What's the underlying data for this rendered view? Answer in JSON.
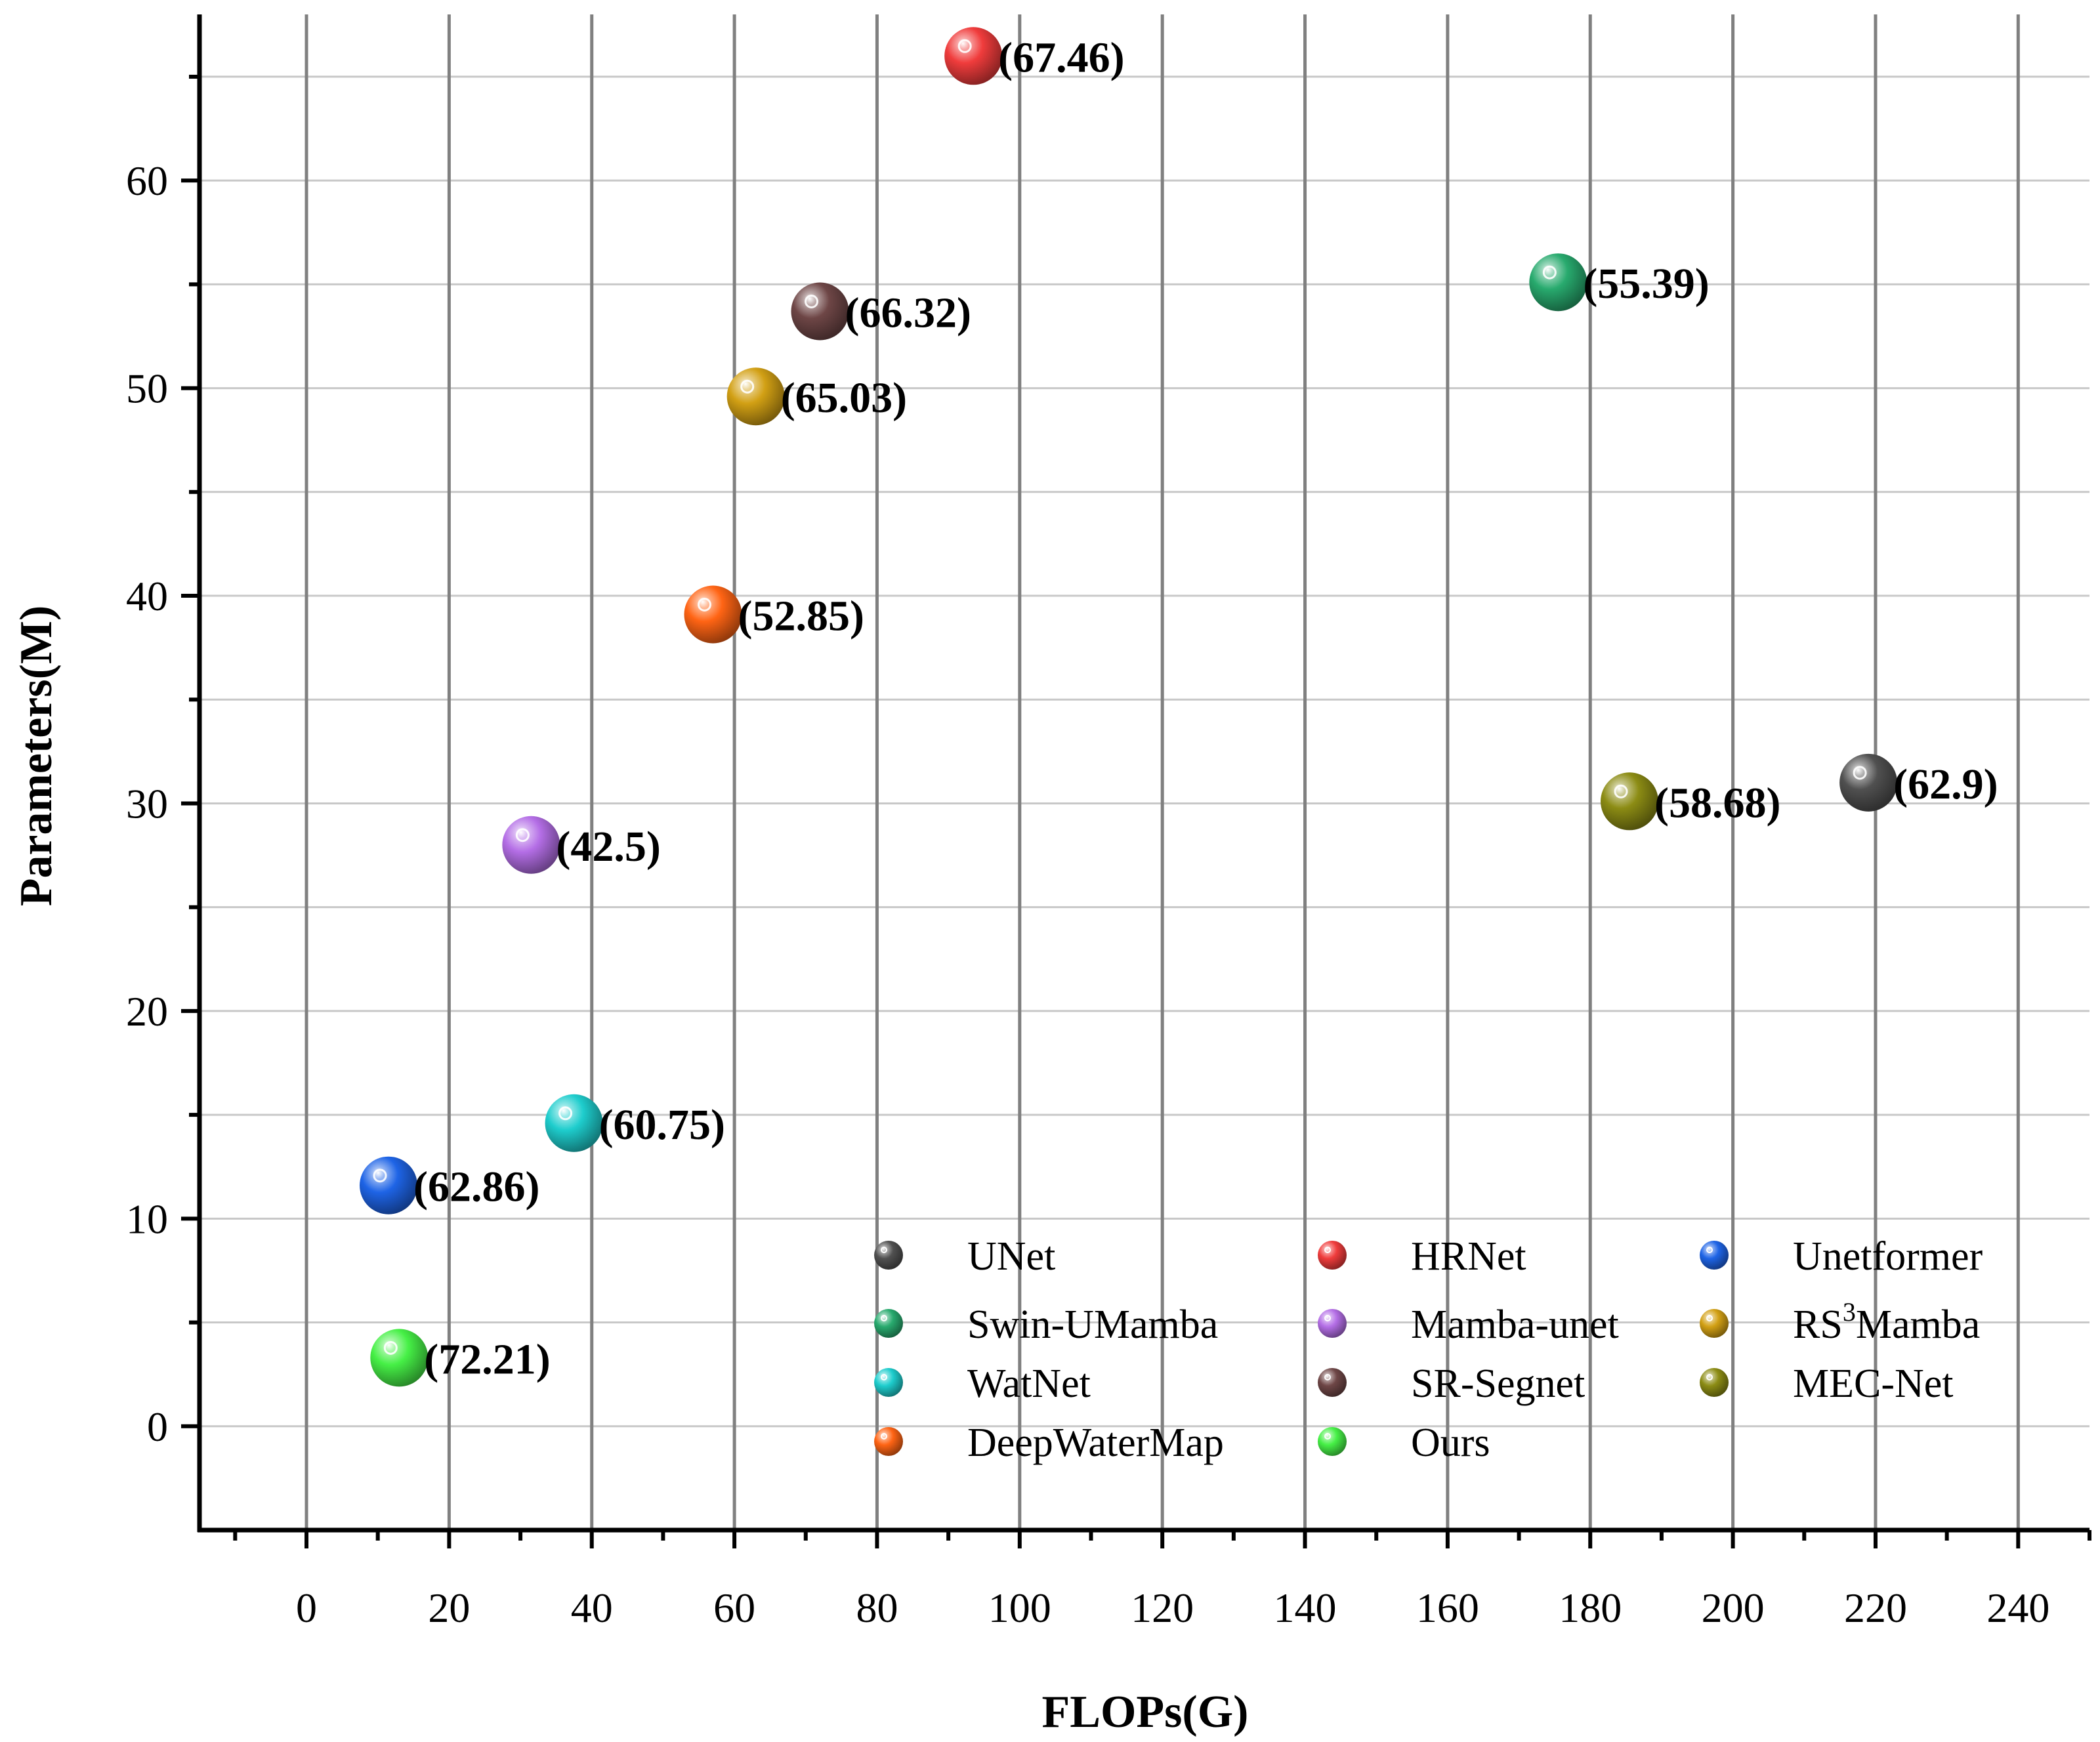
{
  "chart_data": {
    "type": "scatter",
    "title": "",
    "xlabel": "FLOPs(G)",
    "ylabel": "Parameters(M)",
    "xlim": [
      -15,
      250
    ],
    "ylim": [
      -5,
      68
    ],
    "x_ticks": [
      0,
      20,
      40,
      60,
      80,
      100,
      120,
      140,
      160,
      180,
      200,
      220,
      240
    ],
    "y_ticks": [
      0,
      10,
      20,
      30,
      40,
      50,
      60
    ],
    "grid": true,
    "legend_position": "bottom-right",
    "series": [
      {
        "name": "UNet",
        "x": 219,
        "y": 31,
        "label": "(62.9)",
        "color": "#505050"
      },
      {
        "name": "HRNet",
        "x": 93.5,
        "y": 66,
        "label": "(67.46)",
        "color": "#f03c3c"
      },
      {
        "name": "Unetformer",
        "x": 11.5,
        "y": 11.6,
        "label": "(62.86)",
        "color": "#1e64e6"
      },
      {
        "name": "Swin-UMamba",
        "x": 175.5,
        "y": 55.1,
        "label": "(55.39)",
        "color": "#28aa6e"
      },
      {
        "name": "Mamba-unet",
        "x": 31.5,
        "y": 28,
        "label": "(42.5)",
        "color": "#b46ee6"
      },
      {
        "name": "RS3Mamba",
        "x": 63,
        "y": 49.6,
        "label": "(65.03)",
        "color": "#d2a014"
      },
      {
        "name": "WatNet",
        "x": 37.5,
        "y": 14.6,
        "label": "(60.75)",
        "color": "#1ecdcd"
      },
      {
        "name": "SR-Segnet",
        "x": 72,
        "y": 53.7,
        "label": "(66.32)",
        "color": "#6e4646"
      },
      {
        "name": "MEC-Net",
        "x": 185.5,
        "y": 30.1,
        "label": "(58.68)",
        "color": "#8c8c14"
      },
      {
        "name": "DeepWaterMap",
        "x": 57,
        "y": 39.1,
        "label": "(52.85)",
        "color": "#ff6414"
      },
      {
        "name": "Ours",
        "x": 13,
        "y": 3.3,
        "label": "(72.21)",
        "color": "#46f046"
      }
    ],
    "legend": [
      {
        "name": "UNet",
        "color": "#505050"
      },
      {
        "name": "HRNet",
        "color": "#f03c3c"
      },
      {
        "name": "Unetformer",
        "color": "#1e64e6"
      },
      {
        "name": "Swin-UMamba",
        "color": "#28aa6e"
      },
      {
        "name": "Mamba-unet",
        "color": "#b46ee6"
      },
      {
        "name": "RS3Mamba",
        "color": "#d2a014",
        "text_pre": "RS",
        "text_sup": "3",
        "text_post": "Mamba"
      },
      {
        "name": "WatNet",
        "color": "#1ecdcd"
      },
      {
        "name": "SR-Segnet",
        "color": "#6e4646"
      },
      {
        "name": "MEC-Net",
        "color": "#8c8c14"
      },
      {
        "name": "DeepWaterMap",
        "color": "#ff6414"
      },
      {
        "name": "Ours",
        "color": "#46f046"
      }
    ]
  }
}
